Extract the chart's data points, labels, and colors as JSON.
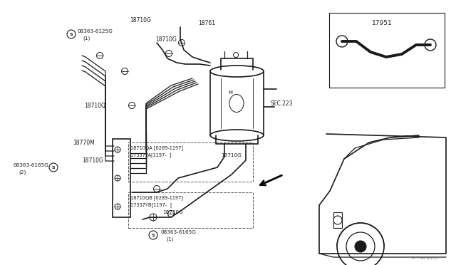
{
  "bg_color": "#ffffff",
  "line_color": "#1a1a1a",
  "fig_width": 6.4,
  "fig_height": 3.72,
  "dpi": 100,
  "watermark": "A 73A 0333",
  "labels": {
    "18710G_top1": "18710G",
    "18710G_top2": "18710G",
    "18761": "18761",
    "circ_s_top": "S",
    "08363_6125G": "08363-6125G",
    "08363_6125G_num": "(1)",
    "18710Q": "18710Q",
    "18770M": "18770M",
    "18710G_mid": "18710G",
    "circ_s_left": "S",
    "08363_6165G_left": "08363-6165G",
    "08363_6165G_left_num": "(2)",
    "18710QA": "18710QA [0289-1197]",
    "17337YA": "17337YA[1197-  ]",
    "18710G_right_mid": "18710G",
    "18710QB": "18710QB [0289-1197]",
    "17337YB": "17337YB[1197-  ]",
    "18710G_bottom": "18710G",
    "circ_s_bottom": "S",
    "08363_6165G_bottom": "08363-6165G",
    "08363_6165G_bottom_num": "(1)",
    "SEC223": "SEC.223",
    "17951": "17951"
  }
}
